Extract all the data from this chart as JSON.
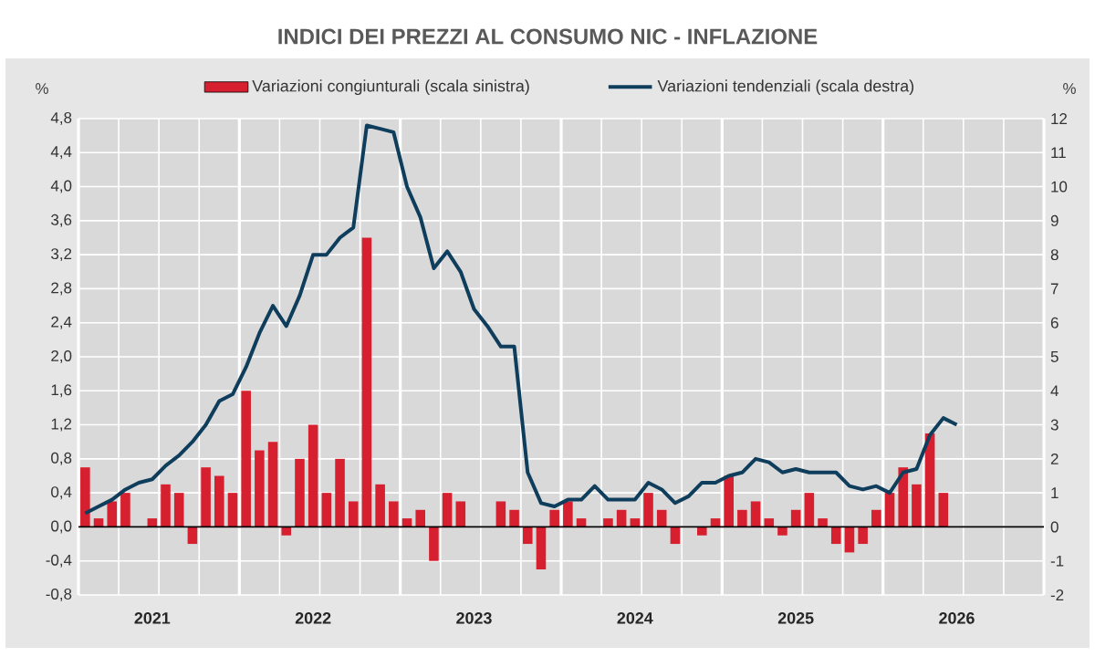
{
  "chart_data": {
    "type": "bar",
    "title": "INDICI DEI PREZZI AL CONSUMO NIC - INFLAZIONE",
    "ylabel": "%",
    "y2label": "%",
    "categories": [
      null,
      null,
      null,
      null,
      null,
      "2021",
      null,
      null,
      null,
      null,
      null,
      null,
      null,
      null,
      null,
      null,
      null,
      "2022",
      null,
      null,
      null,
      null,
      null,
      null,
      null,
      null,
      null,
      null,
      null,
      "2023",
      null,
      null,
      null,
      null,
      null,
      null,
      null,
      null,
      null,
      null,
      null,
      "2024",
      null,
      null,
      null,
      null,
      null,
      null,
      null,
      null,
      null,
      null,
      null,
      "2025",
      null,
      null,
      null,
      null,
      null,
      null,
      null,
      null,
      null,
      null,
      null,
      "2026",
      null,
      null,
      null,
      null,
      null,
      null
    ],
    "series": [
      {
        "name": "Variazioni congiunturali (scala sinistra)",
        "color": "#d7202f",
        "values": [
          0.7,
          0.1,
          0.3,
          0.4,
          0.0,
          0.1,
          0.5,
          0.4,
          -0.2,
          0.7,
          0.6,
          0.4,
          1.6,
          0.9,
          1.0,
          -0.1,
          0.8,
          1.2,
          0.4,
          0.8,
          0.3,
          3.4,
          0.5,
          0.3,
          0.1,
          0.2,
          -0.4,
          0.4,
          0.3,
          0.0,
          0.0,
          0.3,
          0.2,
          -0.2,
          -0.5,
          0.2,
          0.3,
          0.1,
          0.0,
          0.1,
          0.2,
          0.1,
          0.4,
          0.2,
          -0.2,
          0.0,
          -0.1,
          0.1,
          0.6,
          0.2,
          0.3,
          0.1,
          -0.1,
          0.2,
          0.4,
          0.1,
          -0.2,
          -0.3,
          -0.2,
          0.2,
          0.4,
          0.7,
          0.5,
          1.1,
          0.4,
          null,
          null,
          null,
          null,
          null,
          null,
          null
        ]
      },
      {
        "name": "Variazioni tendenziali (scala destra)",
        "type": "line",
        "axis": "y2",
        "color": "#0f3d5c",
        "values": [
          0.4,
          0.6,
          0.8,
          1.1,
          1.3,
          1.4,
          1.8,
          2.1,
          2.5,
          3.0,
          3.7,
          3.9,
          4.7,
          5.7,
          6.5,
          5.9,
          6.8,
          8.0,
          8.0,
          8.5,
          8.8,
          11.8,
          11.7,
          11.6,
          10.0,
          9.1,
          7.6,
          8.1,
          7.5,
          6.4,
          5.9,
          5.3,
          5.3,
          1.6,
          0.7,
          0.6,
          0.8,
          0.8,
          1.2,
          0.8,
          0.8,
          0.8,
          1.3,
          1.1,
          0.7,
          0.9,
          1.3,
          1.3,
          1.5,
          1.6,
          2.0,
          1.9,
          1.6,
          1.7,
          1.6,
          1.6,
          1.6,
          1.2,
          1.1,
          1.2,
          1.0,
          1.6,
          1.7,
          2.7,
          3.2,
          3.0,
          null,
          null,
          null,
          null,
          null,
          null
        ]
      }
    ],
    "ylim": [
      -0.8,
      4.8
    ],
    "yticks": [
      {
        "value": -0.8,
        "label": "-0,8"
      },
      {
        "value": -0.4,
        "label": "-0,4"
      },
      {
        "value": 0,
        "label": "0,0"
      },
      {
        "value": 0.4,
        "label": "0,4"
      },
      {
        "value": 0.8,
        "label": "0,8"
      },
      {
        "value": 1.2,
        "label": "1,2"
      },
      {
        "value": 1.6,
        "label": "1,6"
      },
      {
        "value": 2.0,
        "label": "2,0"
      },
      {
        "value": 2.4,
        "label": "2,4"
      },
      {
        "value": 2.8,
        "label": "2,8"
      },
      {
        "value": 3.2,
        "label": "3,2"
      },
      {
        "value": 3.6,
        "label": "3,6"
      },
      {
        "value": 4.0,
        "label": "4,0"
      },
      {
        "value": 4.4,
        "label": "4,4"
      },
      {
        "value": 4.8,
        "label": "4,8"
      }
    ],
    "y2lim": [
      -2,
      12
    ],
    "y2ticks": [
      -2,
      -1,
      0,
      1,
      2,
      3,
      4,
      5,
      6,
      7,
      8,
      9,
      10,
      11,
      12
    ],
    "grid": true,
    "legend": "top"
  }
}
